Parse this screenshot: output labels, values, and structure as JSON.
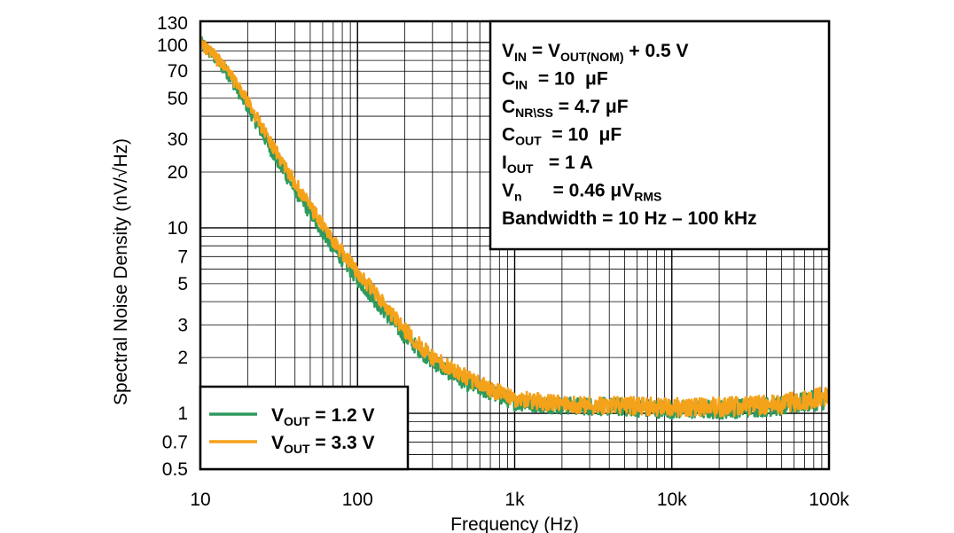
{
  "chart_data": {
    "type": "line",
    "xlabel": "Frequency (Hz)",
    "ylabel": "Spectral Noise Density (nV/√Hz)",
    "xscale": "log",
    "yscale": "log",
    "xlim": [
      10,
      100000
    ],
    "ylim": [
      0.5,
      130
    ],
    "grid": true,
    "legend_position": "bottom-left",
    "x_ticks": [
      {
        "value": 10,
        "label": "10"
      },
      {
        "value": 100,
        "label": "100"
      },
      {
        "value": 1000,
        "label": "1k"
      },
      {
        "value": 10000,
        "label": "10k"
      },
      {
        "value": 100000,
        "label": "100k"
      }
    ],
    "y_ticks": [
      {
        "value": 0.5,
        "label": "0.5"
      },
      {
        "value": 0.7,
        "label": "0.7"
      },
      {
        "value": 1,
        "label": "1"
      },
      {
        "value": 2,
        "label": "2"
      },
      {
        "value": 3,
        "label": "3"
      },
      {
        "value": 5,
        "label": "5"
      },
      {
        "value": 7,
        "label": "7"
      },
      {
        "value": 10,
        "label": "10"
      },
      {
        "value": 20,
        "label": "20"
      },
      {
        "value": 30,
        "label": "30"
      },
      {
        "value": 50,
        "label": "50"
      },
      {
        "value": 70,
        "label": "70"
      },
      {
        "value": 100,
        "label": "100"
      },
      {
        "value": 130,
        "label": "130"
      }
    ],
    "series": [
      {
        "name": "VOUT = 1.2 V",
        "label_main": "V",
        "label_sub": "OUT",
        "label_rest": " = 1.2 V",
        "color": "#2e9a5e",
        "x": [
          10,
          12,
          15,
          20,
          30,
          40,
          50,
          70,
          100,
          150,
          200,
          300,
          500,
          700,
          1000,
          2000,
          5000,
          10000,
          20000,
          50000,
          100000
        ],
        "y": [
          100,
          85,
          68,
          45,
          24,
          16,
          12,
          7.8,
          5.3,
          3.5,
          2.6,
          1.9,
          1.45,
          1.3,
          1.15,
          1.1,
          1.08,
          1.05,
          1.05,
          1.1,
          1.2
        ]
      },
      {
        "name": "VOUT = 3.3 V",
        "label_main": "V",
        "label_sub": "OUT",
        "label_rest": " = 3.3 V",
        "color": "#f5a21b",
        "x": [
          10,
          12,
          15,
          20,
          30,
          40,
          50,
          70,
          100,
          150,
          200,
          300,
          500,
          700,
          1000,
          2000,
          5000,
          10000,
          20000,
          50000,
          100000
        ],
        "y": [
          100,
          86,
          70,
          48,
          26,
          17.5,
          13,
          8.5,
          5.8,
          3.8,
          2.8,
          2.0,
          1.55,
          1.35,
          1.2,
          1.12,
          1.1,
          1.08,
          1.08,
          1.12,
          1.25
        ]
      }
    ],
    "conditions": [
      {
        "parts": [
          {
            "t": "V"
          },
          {
            "t": "IN",
            "sub": true
          },
          {
            "t": " = V"
          },
          {
            "t": "OUT(NOM)",
            "sub": true
          },
          {
            "t": " + 0.5 V"
          }
        ]
      },
      {
        "parts": [
          {
            "t": "C"
          },
          {
            "t": "IN",
            "sub": true
          },
          {
            "t": "  = 10  μF"
          }
        ]
      },
      {
        "parts": [
          {
            "t": "C"
          },
          {
            "t": "NR\\SS",
            "sub": true
          },
          {
            "t": " = 4.7 μF"
          }
        ]
      },
      {
        "parts": [
          {
            "t": "C"
          },
          {
            "t": "OUT",
            "sub": true
          },
          {
            "t": "  = 10  μF"
          }
        ]
      },
      {
        "parts": [
          {
            "t": "I"
          },
          {
            "t": "OUT",
            "sub": true
          },
          {
            "t": "   = 1 A"
          }
        ]
      },
      {
        "parts": [
          {
            "t": "V"
          },
          {
            "t": "n",
            "sub": true
          },
          {
            "t": "      = 0.46 μV"
          },
          {
            "t": "RMS",
            "sub": true
          }
        ]
      },
      {
        "parts": [
          {
            "t": "Bandwidth = 10 Hz – 100 kHz"
          }
        ]
      }
    ]
  }
}
